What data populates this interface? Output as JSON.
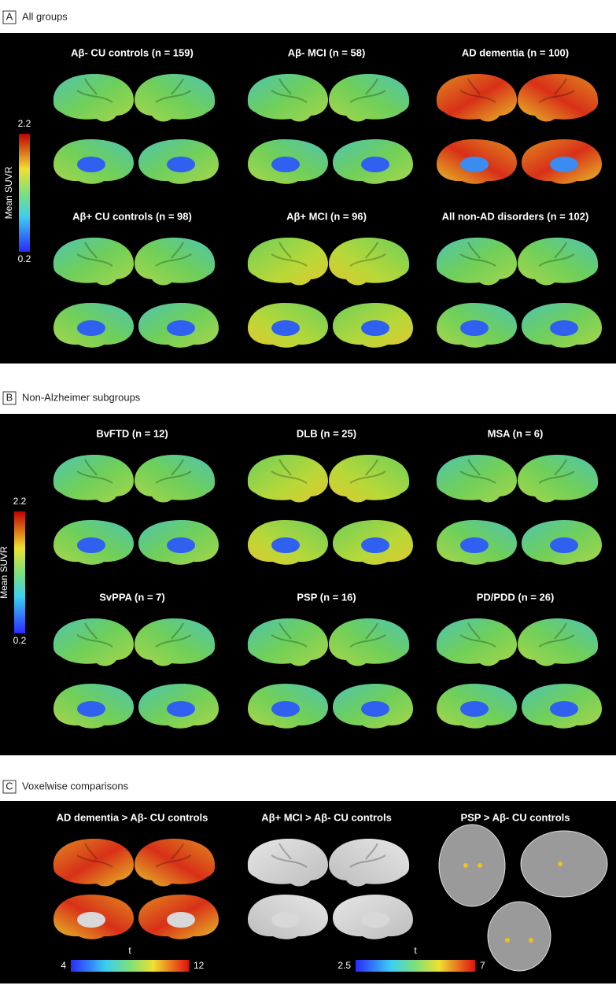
{
  "panels": [
    {
      "letter": "A",
      "title": "All groups",
      "colorbar": {
        "label": "Mean SUVR",
        "max": "2.2",
        "min": "0.2"
      },
      "groups": [
        "Aβ- CU controls (n = 159)",
        "Aβ- MCI (n = 58)",
        "AD dementia (n = 100)",
        "Aβ+ CU controls (n = 98)",
        "Aβ+ MCI (n = 96)",
        "All non-AD disorders (n = 102)"
      ]
    },
    {
      "letter": "B",
      "title": "Non-Alzheimer subgroups",
      "colorbar": {
        "label": "Mean SUVR",
        "max": "2.2",
        "min": "0.2"
      },
      "groups": [
        "BvFTD (n = 12)",
        "DLB (n = 25)",
        "MSA (n = 6)",
        "SvPPA (n = 7)",
        "PSP (n = 16)",
        "PD/PDD (n = 26)"
      ]
    },
    {
      "letter": "C",
      "title": "Voxelwise comparisons",
      "groups": [
        "AD dementia > Aβ- CU controls",
        "Aβ+ MCI > Aβ- CU controls",
        "PSP > Aβ- CU controls"
      ],
      "colorbars": [
        {
          "label": "t",
          "min": "4",
          "max": "12"
        },
        {
          "label": "t",
          "min": "2.5",
          "max": "7"
        }
      ]
    }
  ]
}
